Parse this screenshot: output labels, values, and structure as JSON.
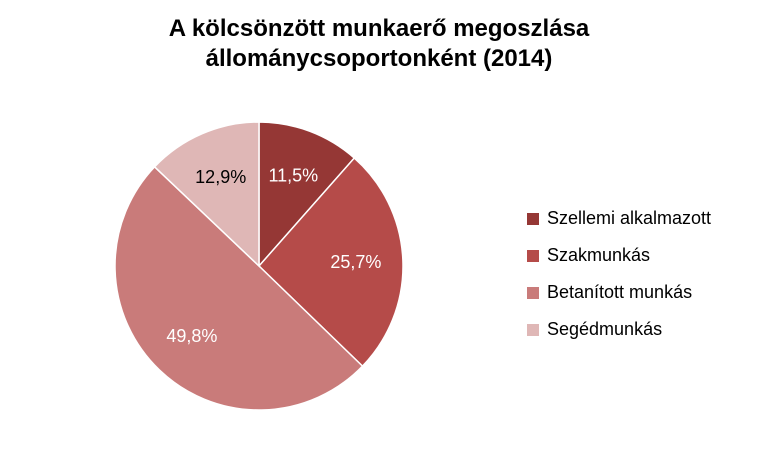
{
  "chart_data": {
    "type": "pie",
    "title_lines": [
      "A kölcsönzött munkaerő megoszlása",
      "állománycsoportonként (2014)"
    ],
    "slices": [
      {
        "name": "Szellemi alkalmazott",
        "value": 11.5,
        "label": "11,5%",
        "color": "#953735",
        "label_color": "#ffffff"
      },
      {
        "name": "Szakmunkás",
        "value": 25.7,
        "label": "25,7%",
        "color": "#b54b49",
        "label_color": "#ffffff"
      },
      {
        "name": "Betanított munkás",
        "value": 49.8,
        "label": "49,8%",
        "color": "#c97b7a",
        "label_color": "#ffffff"
      },
      {
        "name": "Segédmunkás",
        "value": 12.9,
        "label": "12,9%",
        "color": "#dfb7b6",
        "label_color": "#000000"
      }
    ],
    "start_angle": "12 o'clock",
    "direction": "clockwise",
    "legend_position": "right"
  }
}
